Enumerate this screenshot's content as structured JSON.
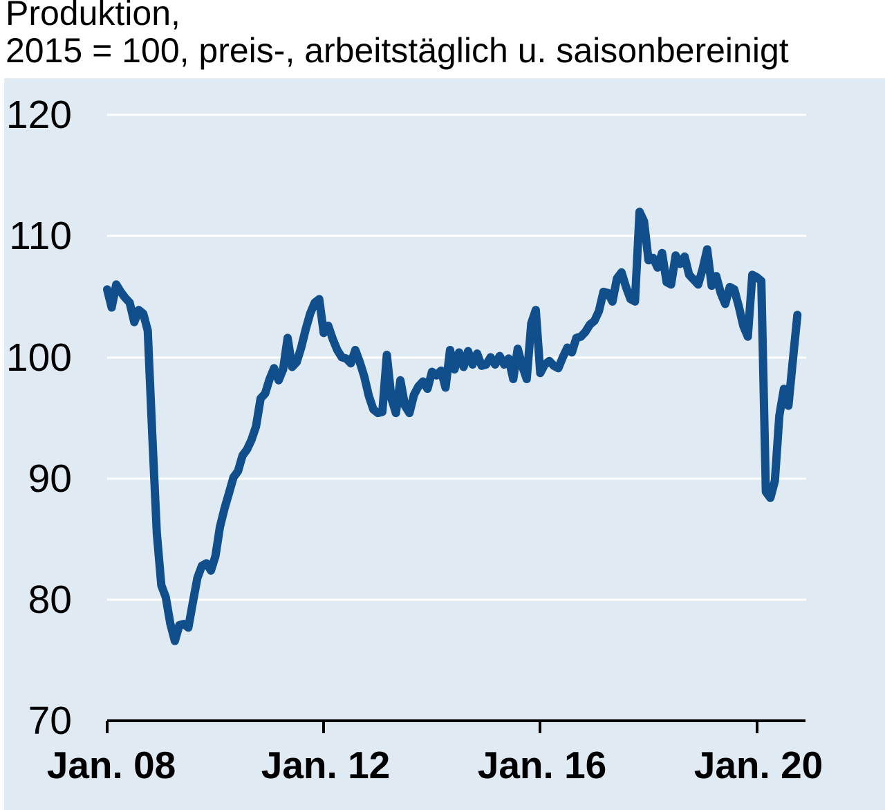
{
  "title": {
    "line1": "Produktion,",
    "line2": "2015 = 100, preis-, arbeitstäglich u. saisonbereinigt"
  },
  "colors": {
    "page_bg": "#ffffff",
    "panel_bg": "#dfeaf3",
    "grid": "#ffffff",
    "axis": "#000000",
    "text": "#000000",
    "line": "#104e8c"
  },
  "chart_data": {
    "type": "line",
    "title": "Produktion",
    "subtitle": "2015 = 100, preis-, arbeitstäglich u. saisonbereinigt",
    "frequency": "monthly",
    "x_start": "2008-01",
    "x_end": "2020-10",
    "x_tick_labels": [
      "Jan. 08",
      "Jan. 12",
      "Jan. 16",
      "Jan. 20"
    ],
    "x_tick_month_indices": [
      0,
      48,
      96,
      144
    ],
    "y_ticks": [
      70,
      80,
      90,
      100,
      110,
      120
    ],
    "ylim": [
      70,
      120
    ],
    "grid": "horizontal-white-lines",
    "legend": "none",
    "series": [
      {
        "name": "Produktion",
        "color": "#104e8c",
        "values": [
          105.6,
          104.1,
          106.0,
          105.4,
          104.9,
          104.5,
          102.9,
          103.9,
          103.6,
          102.2,
          93.5,
          85.5,
          81.2,
          80.2,
          78.0,
          76.6,
          77.9,
          78.0,
          77.7,
          79.8,
          81.8,
          82.8,
          83.0,
          82.4,
          83.6,
          86.0,
          87.5,
          88.8,
          90.1,
          90.6,
          91.9,
          92.4,
          93.2,
          94.3,
          96.6,
          97.0,
          98.2,
          99.1,
          98.1,
          99.0,
          101.6,
          99.2,
          99.6,
          100.8,
          102.3,
          103.6,
          104.5,
          104.8,
          102.0,
          102.6,
          101.5,
          100.6,
          100.0,
          99.9,
          99.5,
          100.6,
          99.6,
          98.4,
          96.8,
          95.7,
          95.4,
          95.5,
          100.2,
          96.6,
          95.4,
          98.1,
          96.0,
          95.4,
          96.9,
          97.6,
          98.0,
          97.4,
          98.8,
          98.5,
          98.9,
          97.5,
          100.6,
          99.0,
          100.4,
          99.2,
          100.5,
          99.4,
          100.3,
          99.3,
          99.4,
          100.0,
          99.4,
          100.1,
          99.4,
          99.9,
          98.2,
          100.7,
          99.3,
          98.2,
          102.8,
          103.9,
          98.7,
          99.4,
          99.7,
          99.3,
          99.1,
          100.0,
          100.8,
          100.4,
          101.6,
          101.7,
          102.1,
          102.7,
          103.0,
          103.8,
          105.4,
          105.3,
          104.6,
          106.5,
          107.0,
          105.8,
          104.8,
          104.6,
          112.0,
          111.2,
          108.0,
          108.2,
          107.4,
          108.6,
          106.2,
          106.0,
          108.4,
          107.7,
          108.3,
          106.8,
          106.4,
          106.0,
          107.3,
          108.9,
          105.9,
          106.7,
          105.3,
          104.4,
          105.8,
          105.6,
          104.2,
          102.6,
          101.7,
          106.8,
          106.6,
          106.3,
          88.9,
          88.4,
          89.8,
          95.2,
          97.4,
          96.0,
          99.8,
          103.5
        ]
      }
    ]
  }
}
